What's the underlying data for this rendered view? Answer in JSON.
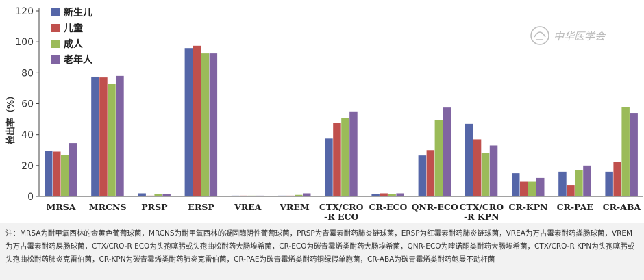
{
  "chart_data": {
    "type": "bar",
    "ylabel": "检出率（%）",
    "ylim": [
      0,
      120
    ],
    "yticks": [
      0,
      20,
      40,
      60,
      80,
      100,
      120
    ],
    "categories": [
      "MRSA",
      "MRCNS",
      "PRSP",
      "ERSP",
      "VREA",
      "VREM",
      "CTX/CRO\n-R ECO",
      "CR-ECO",
      "QNR-ECO",
      "CTX/CRO\n-R KPN",
      "CR-KPN",
      "CR-PAE",
      "CR-ABA"
    ],
    "series": [
      {
        "name": "新生儿",
        "color": "#5566a8",
        "values": [
          29.5,
          77.5,
          2,
          96,
          0.5,
          0.5,
          37.5,
          1.5,
          26.5,
          47,
          15,
          16,
          16
        ]
      },
      {
        "name": "儿童",
        "color": "#c0504d",
        "values": [
          29,
          77,
          0.5,
          97.5,
          0.5,
          0.5,
          47.5,
          2,
          30,
          37,
          9.5,
          7.5,
          22.5
        ]
      },
      {
        "name": "成人",
        "color": "#9bbb59",
        "values": [
          27,
          73,
          1.5,
          92.5,
          0.5,
          1,
          50.5,
          1.5,
          49.5,
          28,
          9.5,
          17,
          58
        ]
      },
      {
        "name": "老年人",
        "color": "#8064a2",
        "values": [
          34.5,
          78,
          1.5,
          92.5,
          0.5,
          2,
          55,
          2,
          57.5,
          33,
          12,
          20,
          54
        ]
      }
    ],
    "legend": "top-left",
    "grid": false
  },
  "watermark": "中华医学会",
  "note": "注：MRSA为耐甲氧西林的金黄色葡萄球菌，MRCNS为耐甲氧西林的凝固酶阴性葡萄球菌，PRSP为青霉素耐药肺炎链球菌，ERSP为红霉素耐药肺炎链球菌，VREA为万古霉素耐药粪肠球菌，VREM为万古霉素耐药屎肠球菌，CTX/CRO-R ECO为头孢噻肟或头孢曲松耐药大肠埃希菌，CR-ECO为碳青霉烯类耐药大肠埃希菌，QNR-ECO为喹诺酮类耐药大肠埃希菌，CTX/CRO-R KPN为头孢噻肟或头孢曲松耐药肺炎克雷伯菌，CR-KPN为碳青霉烯类耐药肺炎克雷伯菌，CR-PAE为碳青霉烯类耐药铜绿假单胞菌，CR-ABA为碳青霉烯类耐药鲍曼不动杆菌"
}
